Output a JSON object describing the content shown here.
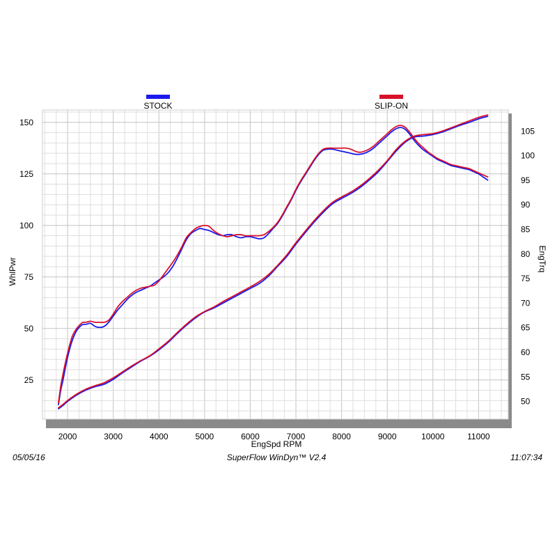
{
  "footer": {
    "date": "05/05/16",
    "software": "SuperFlow WinDyn™ V2.4",
    "time": "11:07:34"
  },
  "chart_data": {
    "type": "line",
    "x_label": "EngSpd  RPM",
    "y_left_label": "WhlPwr",
    "y_right_label": "EngTrq",
    "x_ticks": [
      2000,
      3000,
      4000,
      5000,
      6000,
      7000,
      8000,
      9000,
      10000,
      11000
    ],
    "y_left_ticks": [
      25,
      50,
      75,
      100,
      125,
      150
    ],
    "y_right_ticks": [
      50,
      55,
      60,
      65,
      70,
      75,
      80,
      85,
      90,
      95,
      100,
      105
    ],
    "xlim": [
      1450,
      11650
    ],
    "y_left_lim": [
      6,
      156
    ],
    "y_right_lim": [
      46.4,
      109.3
    ],
    "grid": true,
    "legend": [
      {
        "name": "STOCK",
        "color": "#1a1aee"
      },
      {
        "name": "SLIP-ON",
        "color": "#d8102a"
      }
    ],
    "series": [
      {
        "name": "STOCK",
        "measure": "WhlPwr",
        "axis": "left",
        "color": "#1a1aee",
        "x": [
          1800,
          1850,
          1900,
          2000,
          2100,
          2200,
          2300,
          2350,
          2400,
          2500,
          2600,
          2700,
          2800,
          2900,
          3000,
          3100,
          3200,
          3300,
          3400,
          3500,
          3600,
          3700,
          3800,
          3900,
          4000,
          4100,
          4200,
          4300,
          4400,
          4500,
          4600,
          4700,
          4800,
          4900,
          5000,
          5100,
          5200,
          5300,
          5400,
          5500,
          5600,
          5700,
          5800,
          5900,
          6000,
          6100,
          6200,
          6300,
          6400,
          6500,
          6600,
          6700,
          6800,
          6900,
          7000,
          7100,
          7200,
          7300,
          7400,
          7500,
          7600,
          7700,
          7800,
          7900,
          8000,
          8100,
          8200,
          8300,
          8400,
          8500,
          8600,
          8700,
          8800,
          8900,
          9000,
          9100,
          9200,
          9300,
          9400,
          9500,
          9600,
          9700,
          9800,
          9900,
          10000,
          10100,
          10200,
          10300,
          10400,
          10500,
          10600,
          10700,
          10800,
          10900,
          11000,
          11100,
          11200
        ],
        "values": [
          13,
          20,
          25,
          36,
          44,
          49,
          51.5,
          52,
          52,
          52.5,
          51,
          50.5,
          51,
          53,
          56,
          59,
          61.5,
          64,
          66,
          67.5,
          68.5,
          69.5,
          70.5,
          72,
          73.5,
          75,
          77,
          80,
          84,
          88.5,
          93,
          96,
          97.5,
          98.5,
          98,
          97.5,
          96.5,
          95.5,
          95,
          95.5,
          95.5,
          94.5,
          94,
          94.5,
          94.5,
          94,
          93.5,
          94,
          96,
          98.5,
          101,
          104.5,
          108.5,
          112.5,
          117,
          121,
          124.5,
          128,
          131.5,
          134.5,
          136.5,
          137,
          137,
          136.5,
          136,
          135.5,
          135,
          134.5,
          134.5,
          135,
          136,
          137.5,
          139.5,
          141.5,
          143.5,
          145.5,
          147,
          147.5,
          146.5,
          144,
          141,
          138.5,
          136.5,
          135,
          133.5,
          132,
          131,
          130,
          129,
          128.5,
          128,
          127.5,
          127,
          126,
          125,
          123.5,
          122
        ]
      },
      {
        "name": "SLIP-ON",
        "measure": "WhlPwr",
        "axis": "left",
        "color": "#d8102a",
        "x": [
          1800,
          1850,
          1900,
          2000,
          2100,
          2200,
          2300,
          2350,
          2400,
          2500,
          2600,
          2700,
          2800,
          2900,
          3000,
          3100,
          3200,
          3300,
          3400,
          3500,
          3600,
          3700,
          3800,
          3900,
          4000,
          4100,
          4200,
          4300,
          4400,
          4500,
          4600,
          4700,
          4800,
          4900,
          5000,
          5100,
          5200,
          5300,
          5400,
          5500,
          5600,
          5700,
          5800,
          5900,
          6000,
          6100,
          6200,
          6300,
          6400,
          6500,
          6600,
          6700,
          6800,
          6900,
          7000,
          7100,
          7200,
          7300,
          7400,
          7500,
          7600,
          7700,
          7800,
          7900,
          8000,
          8100,
          8200,
          8300,
          8400,
          8500,
          8600,
          8700,
          8800,
          8900,
          9000,
          9100,
          9200,
          9300,
          9400,
          9500,
          9600,
          9700,
          9800,
          9900,
          10000,
          10100,
          10200,
          10300,
          10400,
          10500,
          10600,
          10700,
          10800,
          10900,
          11000,
          11100,
          11200
        ],
        "values": [
          14,
          22,
          28,
          38,
          46,
          50,
          52.5,
          53,
          53,
          53.5,
          53,
          53,
          53,
          54,
          57,
          60.5,
          63,
          65,
          67,
          68.5,
          69.5,
          70,
          70.5,
          71,
          73,
          76,
          79,
          82,
          85.5,
          89.5,
          94,
          96.5,
          98.5,
          99.5,
          100,
          99.5,
          97.5,
          96,
          95,
          94.5,
          95,
          95.5,
          95.5,
          95,
          95,
          95,
          95,
          95.5,
          97,
          99,
          101.5,
          105,
          109,
          113,
          117.5,
          121.5,
          125,
          128.5,
          132,
          135,
          137,
          137.5,
          137.5,
          137.5,
          137.5,
          137.5,
          137,
          136,
          135.5,
          136,
          137,
          138.5,
          140.5,
          142.5,
          144.5,
          146.5,
          148,
          148.5,
          147.5,
          145,
          142,
          139.5,
          137.5,
          135.5,
          134,
          132.5,
          131.5,
          130.5,
          129.5,
          129,
          128.5,
          128,
          127.5,
          126.5,
          125.5,
          124.5,
          123.5
        ]
      },
      {
        "name": "STOCK",
        "measure": "EngTrq",
        "axis": "right",
        "color": "#1a1aee",
        "x": [
          1800,
          1900,
          2000,
          2200,
          2400,
          2600,
          2800,
          3000,
          3200,
          3400,
          3600,
          3800,
          4000,
          4200,
          4400,
          4600,
          4800,
          5000,
          5200,
          5400,
          5600,
          5800,
          6000,
          6200,
          6400,
          6600,
          6800,
          7000,
          7200,
          7400,
          7600,
          7800,
          8000,
          8200,
          8400,
          8600,
          8800,
          9000,
          9200,
          9400,
          9600,
          9800,
          10000,
          10200,
          10400,
          10600,
          10800,
          11000,
          11200
        ],
        "values": [
          48.5,
          49.2,
          50,
          51.3,
          52.3,
          53,
          53.5,
          54.5,
          55.8,
          57,
          58.2,
          59.2,
          60.5,
          62,
          63.8,
          65.5,
          67,
          68.2,
          69,
          70,
          71,
          72,
          73,
          74,
          75.5,
          77.5,
          79.5,
          82,
          84.3,
          86.5,
          88.5,
          90.2,
          91.3,
          92.3,
          93.5,
          95,
          96.7,
          98.8,
          101,
          102.8,
          103.8,
          104,
          104.3,
          104.8,
          105.5,
          106.2,
          106.8,
          107.5,
          108
        ]
      },
      {
        "name": "SLIP-ON",
        "measure": "EngTrq",
        "axis": "right",
        "color": "#d8102a",
        "x": [
          1800,
          1900,
          2000,
          2200,
          2400,
          2600,
          2800,
          3000,
          3200,
          3400,
          3600,
          3800,
          4000,
          4200,
          4400,
          4600,
          4800,
          5000,
          5200,
          5400,
          5600,
          5800,
          6000,
          6200,
          6400,
          6600,
          6800,
          7000,
          7200,
          7400,
          7600,
          7800,
          8000,
          8200,
          8400,
          8600,
          8800,
          9000,
          9200,
          9400,
          9600,
          9800,
          10000,
          10200,
          10400,
          10600,
          10800,
          11000,
          11200
        ],
        "values": [
          48.7,
          49.4,
          50.2,
          51.5,
          52.5,
          53.2,
          53.8,
          54.8,
          56,
          57.2,
          58.3,
          59.3,
          60.7,
          62.2,
          64,
          65.7,
          67.2,
          68.3,
          69.2,
          70.3,
          71.3,
          72.3,
          73.3,
          74.4,
          75.8,
          77.7,
          79.8,
          82.3,
          84.6,
          86.8,
          88.8,
          90.5,
          91.6,
          92.6,
          93.8,
          95.3,
          97,
          99,
          101.3,
          103,
          104,
          104.3,
          104.5,
          105,
          105.7,
          106.4,
          107.1,
          107.8,
          108.3
        ]
      }
    ]
  }
}
